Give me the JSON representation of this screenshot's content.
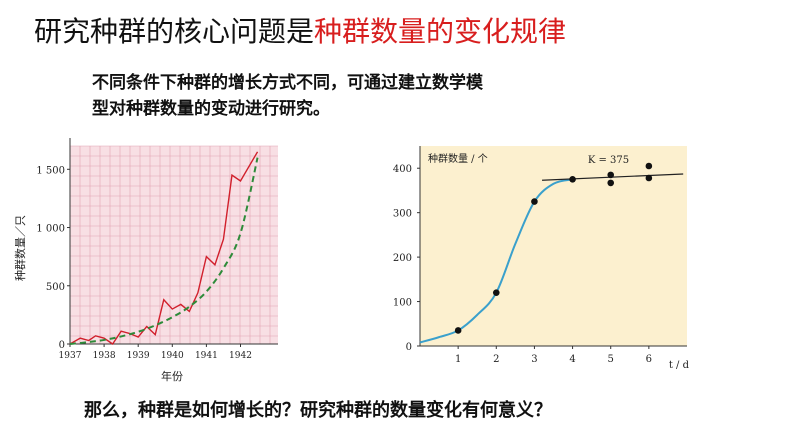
{
  "slide": {
    "title_plain": "研究种群的核心问题是",
    "title_highlight": "种群数量的变化规律",
    "intro_line1": "不同条件下种群的增长方式不同，可通过建立数学模",
    "intro_line2": "型对种群数量的变动进行研究。",
    "question": "那么，种群是如何增长的？研究种群的数量变化有何意义？"
  },
  "colors": {
    "title_highlight": "#d81e1e",
    "left_plot_bg": "#f8dfe4",
    "left_series": "#d1202c",
    "left_trend": "#2e8b3a",
    "right_plot_bg": "#fcf0cf",
    "right_curve": "#3aa0cc"
  },
  "chart_data": [
    {
      "type": "line",
      "ylabel": "种群数量／只",
      "xlabel": "年份",
      "y_ticks": [
        "0",
        "500",
        "1 000",
        "1 500"
      ],
      "x_ticks": [
        "1937",
        "1938",
        "1939",
        "1940",
        "1941",
        "1942"
      ],
      "ylim": [
        0,
        1700
      ],
      "xlim": [
        1937,
        1943.1
      ],
      "grid": true,
      "series": [
        {
          "style": "solid",
          "x": [
            1937,
            1937.3,
            1937.55,
            1937.75,
            1938,
            1938.25,
            1938.5,
            1938.75,
            1939,
            1939.25,
            1939.5,
            1939.75,
            1940,
            1940.25,
            1940.5,
            1940.75,
            1941,
            1941.25,
            1941.5,
            1941.75,
            1942,
            1942.5
          ],
          "y": [
            0,
            50,
            30,
            70,
            50,
            0,
            110,
            90,
            60,
            150,
            80,
            380,
            300,
            340,
            280,
            440,
            750,
            680,
            900,
            1450,
            1400,
            1650
          ]
        },
        {
          "style": "dashed",
          "x": [
            1937,
            1937.5,
            1938,
            1938.5,
            1939,
            1939.5,
            1940,
            1940.5,
            1941,
            1941.5,
            1942,
            1942.5
          ],
          "y": [
            0,
            15,
            35,
            65,
            105,
            160,
            230,
            320,
            450,
            650,
            950,
            1600
          ]
        }
      ]
    },
    {
      "type": "line",
      "ylabel": "种群数量 / 个",
      "xlabel": "t / d",
      "y_ticks": [
        "0",
        "100",
        "200",
        "300",
        "400"
      ],
      "x_ticks": [
        "1",
        "2",
        "3",
        "4",
        "5",
        "6"
      ],
      "ylim": [
        0,
        450
      ],
      "xlim": [
        0,
        7
      ],
      "annotation": "K = 375",
      "series": [
        {
          "style": "curve",
          "x": [
            0,
            0.5,
            1,
            1.5,
            2,
            2.5,
            3,
            3.5,
            4
          ],
          "y": [
            8,
            20,
            35,
            70,
            120,
            230,
            325,
            365,
            375
          ]
        },
        {
          "style": "fit-line",
          "x": [
            3.2,
            6.9
          ],
          "y": [
            373,
            387
          ]
        },
        {
          "style": "points",
          "x": [
            1,
            2,
            3,
            4,
            5,
            5,
            6,
            6
          ],
          "y": [
            35,
            120,
            325,
            375,
            385,
            367,
            405,
            378
          ]
        }
      ]
    }
  ]
}
